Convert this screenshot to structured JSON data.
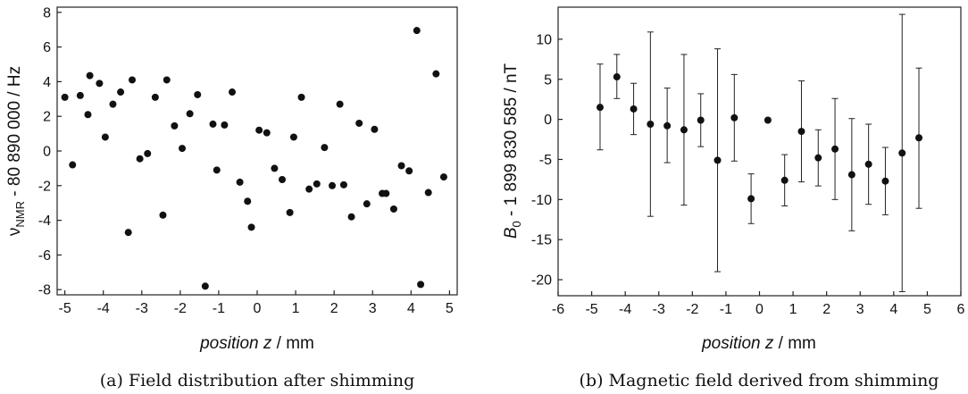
{
  "chart_data": [
    {
      "type": "scatter",
      "title": "",
      "caption": "(a) Field distribution after shimming",
      "xlabel_italic": "position z",
      "xlabel_unit": " / mm",
      "ylabel_main": "ν",
      "ylabel_sub": "NMR",
      "ylabel_rest": " - 80 890 000 / Hz",
      "xlim": [
        -5.2,
        5.2
      ],
      "ylim": [
        -8.3,
        8.3
      ],
      "xticks": [
        -5,
        -4,
        -3,
        -2,
        -1,
        0,
        1,
        2,
        3,
        4,
        5
      ],
      "yticks": [
        -8,
        -6,
        -4,
        -2,
        0,
        2,
        4,
        6,
        8
      ],
      "grid": false,
      "series": [
        {
          "points": [
            [
              -5.0,
              3.1
            ],
            [
              -4.8,
              -0.8
            ],
            [
              -4.6,
              3.2
            ],
            [
              -4.4,
              2.1
            ],
            [
              -4.35,
              4.35
            ],
            [
              -4.1,
              3.9
            ],
            [
              -3.95,
              0.8
            ],
            [
              -3.75,
              2.7
            ],
            [
              -3.55,
              3.4
            ],
            [
              -3.35,
              -4.7
            ],
            [
              -3.25,
              4.1
            ],
            [
              -3.05,
              -0.45
            ],
            [
              -2.85,
              -0.15
            ],
            [
              -2.65,
              3.1
            ],
            [
              -2.45,
              -3.7
            ],
            [
              -2.35,
              4.1
            ],
            [
              -2.15,
              1.45
            ],
            [
              -1.95,
              0.15
            ],
            [
              -1.75,
              2.15
            ],
            [
              -1.55,
              3.25
            ],
            [
              -1.35,
              -7.8
            ],
            [
              -1.15,
              1.55
            ],
            [
              -1.05,
              -1.1
            ],
            [
              -0.85,
              1.5
            ],
            [
              -0.65,
              3.4
            ],
            [
              -0.45,
              -1.8
            ],
            [
              -0.25,
              -2.9
            ],
            [
              -0.15,
              -4.4
            ],
            [
              0.05,
              1.2
            ],
            [
              0.25,
              1.05
            ],
            [
              0.45,
              -1.0
            ],
            [
              0.65,
              -1.65
            ],
            [
              0.85,
              -3.55
            ],
            [
              0.95,
              0.8
            ],
            [
              1.15,
              3.1
            ],
            [
              1.35,
              -2.2
            ],
            [
              1.55,
              -1.9
            ],
            [
              1.75,
              0.2
            ],
            [
              1.95,
              -2.0
            ],
            [
              2.15,
              2.7
            ],
            [
              2.25,
              -1.95
            ],
            [
              2.45,
              -3.8
            ],
            [
              2.65,
              1.6
            ],
            [
              2.85,
              -3.05
            ],
            [
              3.05,
              1.25
            ],
            [
              3.25,
              -2.45
            ],
            [
              3.35,
              -2.45
            ],
            [
              3.55,
              -3.35
            ],
            [
              3.75,
              -0.85
            ],
            [
              3.95,
              -1.15
            ],
            [
              4.15,
              6.95
            ],
            [
              4.25,
              -7.7
            ],
            [
              4.45,
              -2.4
            ],
            [
              4.65,
              4.45
            ],
            [
              4.85,
              -1.5
            ]
          ]
        }
      ]
    },
    {
      "type": "scatter",
      "title": "",
      "caption": "(b) Magnetic field derived from shimming",
      "xlabel_italic": "position z",
      "xlabel_unit": " / mm",
      "ylabel_main": "B",
      "ylabel_sub": "0",
      "ylabel_rest": " - 1 899 830 585 / nT",
      "xlim": [
        -6,
        6
      ],
      "ylim": [
        -22,
        14
      ],
      "xticks": [
        -6,
        -5,
        -4,
        -3,
        -2,
        -1,
        0,
        1,
        2,
        3,
        4,
        5,
        6
      ],
      "yticks": [
        -20,
        -15,
        -10,
        -5,
        0,
        5,
        10
      ],
      "grid": false,
      "series": [
        {
          "points": [
            {
              "x": -4.75,
              "y": 1.5,
              "lo": -3.8,
              "hi": 6.9
            },
            {
              "x": -4.25,
              "y": 5.3,
              "lo": 2.6,
              "hi": 8.1
            },
            {
              "x": -3.75,
              "y": 1.3,
              "lo": -1.9,
              "hi": 4.5
            },
            {
              "x": -3.25,
              "y": -0.6,
              "lo": -12.1,
              "hi": 10.9
            },
            {
              "x": -2.75,
              "y": -0.8,
              "lo": -5.4,
              "hi": 3.9
            },
            {
              "x": -2.25,
              "y": -1.3,
              "lo": -10.7,
              "hi": 8.1
            },
            {
              "x": -1.75,
              "y": -0.1,
              "lo": -3.4,
              "hi": 3.2
            },
            {
              "x": -1.25,
              "y": -5.1,
              "lo": -19.0,
              "hi": 8.8
            },
            {
              "x": -0.75,
              "y": 0.2,
              "lo": -5.2,
              "hi": 5.6
            },
            {
              "x": -0.25,
              "y": -9.9,
              "lo": -13.0,
              "hi": -6.8
            },
            {
              "x": 0.25,
              "y": -0.1
            },
            {
              "x": 0.75,
              "y": -7.6,
              "lo": -10.8,
              "hi": -4.4
            },
            {
              "x": 1.25,
              "y": -1.5,
              "lo": -7.8,
              "hi": 4.8
            },
            {
              "x": 1.75,
              "y": -4.8,
              "lo": -8.3,
              "hi": -1.3
            },
            {
              "x": 2.25,
              "y": -3.7,
              "lo": -10.0,
              "hi": 2.6
            },
            {
              "x": 2.75,
              "y": -6.9,
              "lo": -13.9,
              "hi": 0.1
            },
            {
              "x": 3.25,
              "y": -5.6,
              "lo": -10.6,
              "hi": -0.6
            },
            {
              "x": 3.75,
              "y": -7.7,
              "lo": -11.9,
              "hi": -3.5
            },
            {
              "x": 4.25,
              "y": -4.2,
              "lo": -21.5,
              "hi": 13.1
            },
            {
              "x": 4.75,
              "y": -2.3,
              "lo": -11.1,
              "hi": 6.4
            }
          ]
        }
      ]
    }
  ]
}
